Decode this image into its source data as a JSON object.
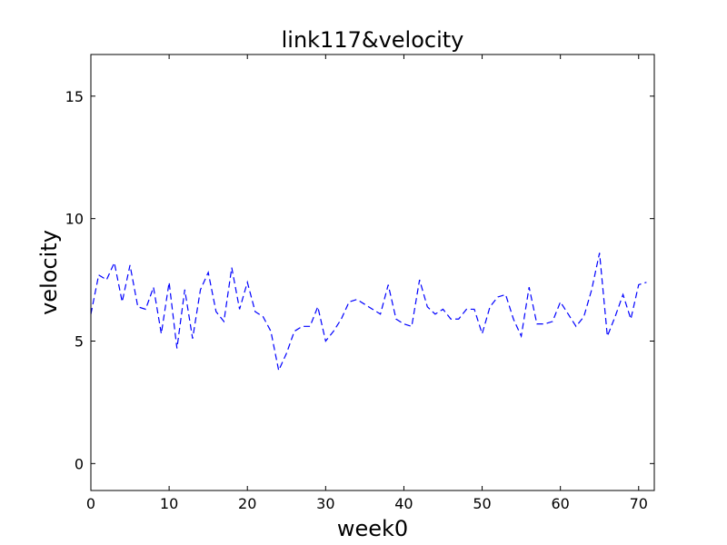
{
  "chart_data": {
    "type": "line",
    "title": "link117&velocity",
    "xlabel": "week0",
    "ylabel": "velocity",
    "xlim": [
      0,
      72
    ],
    "ylim": [
      -1.1,
      16.7
    ],
    "xticks": [
      0,
      10,
      20,
      30,
      40,
      50,
      60,
      70
    ],
    "yticks": [
      0,
      5,
      10,
      15
    ],
    "grid": false,
    "colors": {
      "line": "#0000ff",
      "axes": "#000000",
      "background": "#ffffff"
    },
    "series": [
      {
        "style": "dashed",
        "x": [
          0,
          1,
          2,
          3,
          4,
          5,
          6,
          7,
          8,
          9,
          10,
          11,
          12,
          13,
          14,
          15,
          16,
          17,
          18,
          19,
          20,
          21,
          22,
          23,
          24,
          25,
          26,
          27,
          28,
          29,
          30,
          31,
          32,
          33,
          34,
          35,
          36,
          37,
          38,
          39,
          40,
          41,
          42,
          43,
          44,
          45,
          46,
          47,
          48,
          49,
          50,
          51,
          52,
          53,
          54,
          55,
          56,
          57,
          58,
          59,
          60,
          61,
          62,
          63,
          64,
          65,
          66,
          67,
          68,
          69,
          70,
          71
        ],
        "y": [
          6.1,
          7.7,
          7.5,
          8.2,
          6.6,
          8.1,
          6.4,
          6.3,
          7.2,
          5.3,
          7.4,
          4.7,
          7.1,
          5.1,
          7.1,
          7.8,
          6.2,
          5.8,
          8.0,
          6.3,
          7.4,
          6.2,
          6.0,
          5.4,
          3.8,
          4.5,
          5.4,
          5.6,
          5.6,
          6.4,
          5.0,
          5.4,
          5.9,
          6.6,
          6.7,
          6.5,
          6.3,
          6.1,
          7.3,
          5.9,
          5.7,
          5.6,
          7.5,
          6.4,
          6.1,
          6.3,
          5.9,
          5.9,
          6.3,
          6.3,
          5.3,
          6.4,
          6.8,
          6.9,
          5.9,
          5.2,
          7.2,
          5.7,
          5.7,
          5.8,
          6.6,
          6.1,
          5.6,
          6.0,
          7.1,
          8.6,
          5.2,
          6.0,
          6.9,
          5.9,
          7.3,
          7.4
        ]
      }
    ]
  }
}
